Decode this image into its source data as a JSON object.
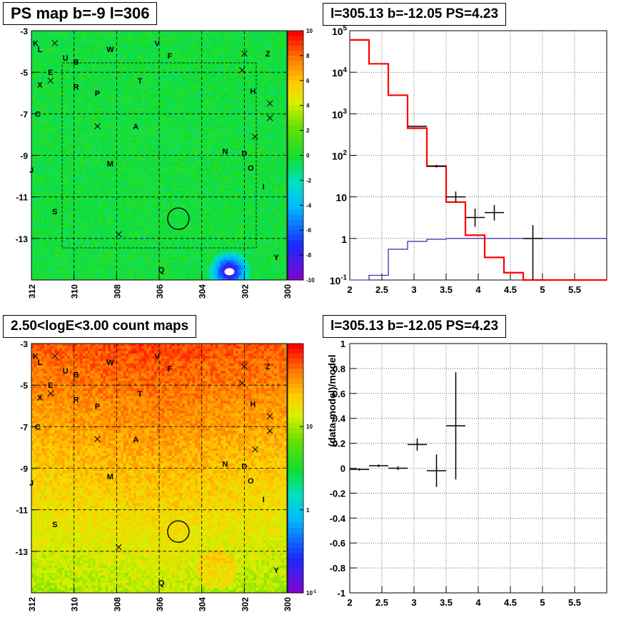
{
  "titles": {
    "top_left": "PS map b=-9 l=306",
    "top_right": "l=305.13 b=-12.05 PS=4.23",
    "bottom_left": "2.50<logE<3.00 count maps",
    "bottom_right": "l=305.13 b=-12.05 PS=4.23"
  },
  "chart_data": [
    {
      "type": "heatmap",
      "name": "ps-map",
      "x_ticks": [
        "312",
        "310",
        "308",
        "306",
        "304",
        "302",
        "300"
      ],
      "y_ticks": [
        "-3",
        "-5",
        "-7",
        "-9",
        "-11",
        "-13"
      ],
      "xlim": [
        312,
        300
      ],
      "ylim": [
        -15,
        -3
      ],
      "colorbar": {
        "ticks": [
          "10",
          "8",
          "6",
          "4",
          "2",
          "0",
          "-2",
          "-4",
          "-6",
          "-8",
          "-10"
        ],
        "range": [
          -10,
          10
        ]
      },
      "source_labels": [
        {
          "t": "K",
          "l": 311.8,
          "b": -3.6
        },
        {
          "t": "L",
          "l": 311.6,
          "b": -3.9
        },
        {
          "t": "U",
          "l": 310.4,
          "b": -4.3
        },
        {
          "t": "B",
          "l": 309.9,
          "b": -4.5
        },
        {
          "t": "W",
          "l": 308.3,
          "b": -3.9
        },
        {
          "t": "V",
          "l": 306.1,
          "b": -3.6
        },
        {
          "t": "F",
          "l": 305.5,
          "b": -4.2
        },
        {
          "t": "Z",
          "l": 300.9,
          "b": -4.1
        },
        {
          "t": "E",
          "l": 311.1,
          "b": -5.0
        },
        {
          "t": "X",
          "l": 311.6,
          "b": -5.6
        },
        {
          "t": "R",
          "l": 309.9,
          "b": -5.7
        },
        {
          "t": "P",
          "l": 308.9,
          "b": -6.0
        },
        {
          "t": "T",
          "l": 306.9,
          "b": -5.4
        },
        {
          "t": "H",
          "l": 301.6,
          "b": -5.9
        },
        {
          "t": "C",
          "l": 311.7,
          "b": -7.0
        },
        {
          "t": "A",
          "l": 307.1,
          "b": -7.6
        },
        {
          "t": "N",
          "l": 302.9,
          "b": -8.8
        },
        {
          "t": "D",
          "l": 302.0,
          "b": -8.9
        },
        {
          "t": "O",
          "l": 301.7,
          "b": -9.6
        },
        {
          "t": "M",
          "l": 308.3,
          "b": -9.4
        },
        {
          "t": "J",
          "l": 312.0,
          "b": -9.7
        },
        {
          "t": "I",
          "l": 301.1,
          "b": -10.5
        },
        {
          "t": "S",
          "l": 310.9,
          "b": -11.7
        },
        {
          "t": "Q",
          "l": 305.9,
          "b": -14.5
        },
        {
          "t": "Y",
          "l": 300.5,
          "b": -13.9
        }
      ],
      "x_markers": [
        {
          "l": 310.9,
          "b": -3.6
        },
        {
          "l": 302.0,
          "b": -4.1
        },
        {
          "l": 302.1,
          "b": -4.9
        },
        {
          "l": 311.1,
          "b": -5.4
        },
        {
          "l": 300.8,
          "b": -6.5
        },
        {
          "l": 300.8,
          "b": -7.2
        },
        {
          "l": 308.9,
          "b": -7.6
        },
        {
          "l": 301.5,
          "b": -8.1
        },
        {
          "l": 307.9,
          "b": -12.8
        }
      ],
      "circle": {
        "l": 305.1,
        "b": -12.05,
        "r": 0.5
      },
      "hot_spot": {
        "l": 302.7,
        "b": -14.6
      }
    },
    {
      "type": "line",
      "name": "energy-spectrum",
      "yscale": "log",
      "xlim": [
        2,
        6
      ],
      "ylim": [
        0.1,
        100000
      ],
      "x_ticks": [
        "2",
        "2.5",
        "3",
        "3.5",
        "4",
        "4.5",
        "5",
        "5.5"
      ],
      "y_ticks": [
        {
          "v": 100000,
          "base": "10",
          "exp": "5"
        },
        {
          "v": 10000,
          "base": "10",
          "exp": "4"
        },
        {
          "v": 1000,
          "base": "10",
          "exp": "3"
        },
        {
          "v": 100,
          "base": "10",
          "exp": "2"
        },
        {
          "v": 10,
          "base": "10",
          "exp": ""
        },
        {
          "v": 1,
          "base": "1",
          "exp": ""
        },
        {
          "v": 0.1,
          "base": "10",
          "exp": "-1"
        }
      ],
      "model_red": {
        "edges": [
          2.0,
          2.3,
          2.6,
          2.9,
          3.2,
          3.5,
          3.8,
          4.1,
          4.4,
          4.7,
          5.0,
          6.0
        ],
        "values": [
          60000,
          16000,
          2800,
          450,
          55,
          7.5,
          1.2,
          0.35,
          0.15,
          0.1,
          0.1
        ]
      },
      "model_blue": {
        "edges": [
          2.0,
          2.3,
          2.6,
          2.9,
          3.2,
          3.5,
          3.8,
          4.1,
          4.4,
          4.7,
          5.0,
          6.0
        ],
        "values": [
          0.1,
          0.13,
          0.55,
          0.85,
          0.95,
          1.0,
          1.0,
          1.0,
          1.0,
          1.0,
          1.0
        ]
      },
      "data_points": [
        {
          "x": 3.05,
          "y": 500,
          "xerr": 0.15,
          "ylo": 490,
          "yhi": 510
        },
        {
          "x": 3.35,
          "y": 55,
          "xerr": 0.15,
          "ylo": 51,
          "yhi": 59
        },
        {
          "x": 3.65,
          "y": 10,
          "xerr": 0.15,
          "ylo": 7.5,
          "yhi": 13.5
        },
        {
          "x": 3.95,
          "y": 3.2,
          "xerr": 0.15,
          "ylo": 1.9,
          "yhi": 5.2
        },
        {
          "x": 4.25,
          "y": 4.2,
          "xerr": 0.15,
          "ylo": 2.7,
          "yhi": 6.4
        },
        {
          "x": 4.85,
          "y": 1.0,
          "xerr": 0.15,
          "ylo": 0.1,
          "yhi": 2.1
        }
      ]
    },
    {
      "type": "heatmap",
      "name": "count-map",
      "x_ticks": [
        "312",
        "310",
        "308",
        "306",
        "304",
        "302",
        "300"
      ],
      "y_ticks": [
        "-3",
        "-5",
        "-7",
        "-9",
        "-11",
        "-13"
      ],
      "xlim": [
        312,
        300
      ],
      "ylim": [
        -15,
        -3
      ],
      "colorbar": {
        "scale": "log",
        "ticks": [
          {
            "base": "10",
            "exp": ""
          },
          {
            "base": "1",
            "exp": ""
          },
          {
            "base": "10",
            "exp": "-1"
          }
        ],
        "range": [
          0.1,
          100
        ]
      }
    },
    {
      "type": "scatter",
      "name": "residuals",
      "xlim": [
        2,
        6
      ],
      "ylim": [
        -1,
        1
      ],
      "ylabel": "(data-model)/model",
      "x_ticks": [
        "2",
        "2.5",
        "3",
        "3.5",
        "4",
        "4.5",
        "5",
        "5.5"
      ],
      "y_ticks": [
        "1",
        "0.8",
        "0.6",
        "0.4",
        "0.2",
        "0",
        "-0.2",
        "-0.4",
        "-0.6",
        "-0.8",
        "-1"
      ],
      "points": [
        {
          "x": 2.15,
          "y": -0.01,
          "xerr": 0.15,
          "yerr": 0.01
        },
        {
          "x": 2.45,
          "y": 0.02,
          "xerr": 0.15,
          "yerr": 0.01
        },
        {
          "x": 2.75,
          "y": 0.0,
          "xerr": 0.15,
          "yerr": 0.015
        },
        {
          "x": 3.05,
          "y": 0.19,
          "xerr": 0.15,
          "yerr": 0.05
        },
        {
          "x": 3.35,
          "y": -0.02,
          "xerr": 0.15,
          "yerr": 0.13
        },
        {
          "x": 3.65,
          "y": 0.34,
          "xerr": 0.15,
          "yerr": 0.43
        }
      ]
    }
  ]
}
